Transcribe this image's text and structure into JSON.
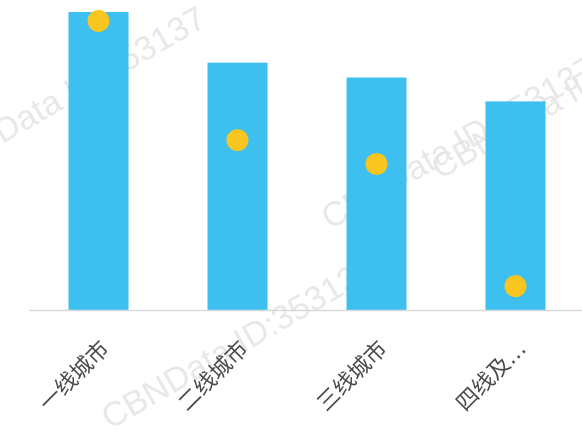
{
  "chart_data": {
    "type": "bar",
    "categories": [
      "一线城市",
      "二线城市",
      "三线城市",
      "四线及…"
    ],
    "series": [
      {
        "type": "bar",
        "values": [
          100,
          83,
          78,
          70
        ]
      },
      {
        "type": "scatter",
        "values": [
          97,
          57,
          49,
          8
        ]
      }
    ],
    "ylim": [
      0,
      100
    ],
    "grid": false,
    "legend": "none",
    "colors": {
      "bar": "#3DBFEF",
      "point": "#F9C520",
      "axis": "#D9D9D9",
      "tick": "#4a4a4a"
    }
  },
  "watermark": {
    "text": "CBNData ID:353137"
  }
}
